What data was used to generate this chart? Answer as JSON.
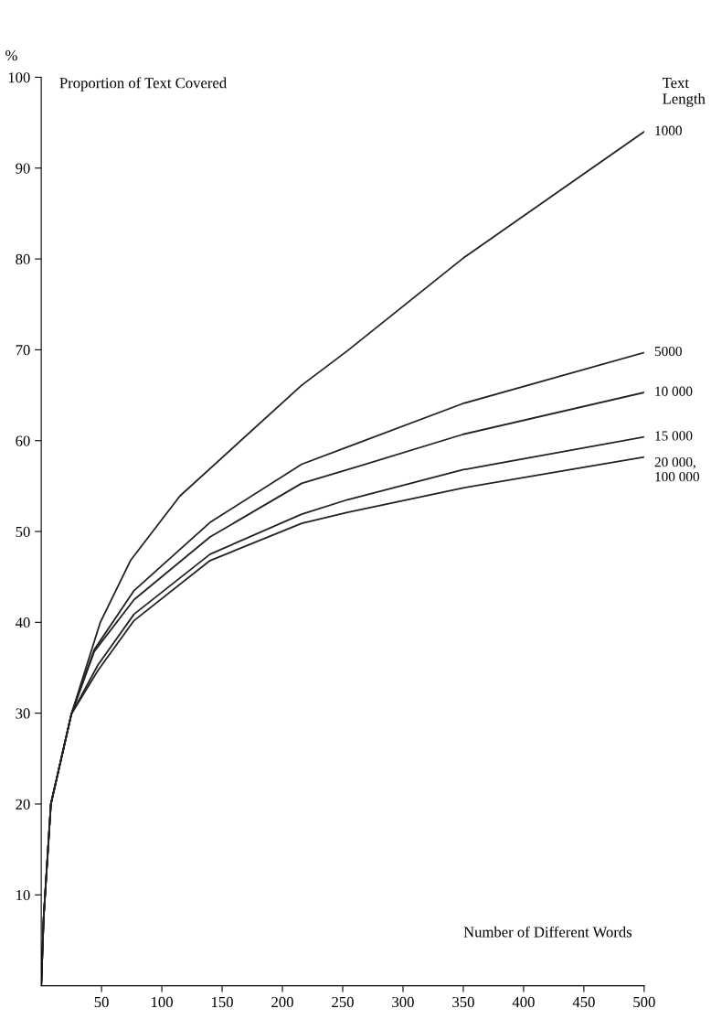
{
  "chart_data": {
    "type": "line",
    "ylabel": "Proportion of Text Covered",
    "xlabel": "Number of Different Words",
    "legend_title": "Text Length",
    "annotations": [
      "%"
    ],
    "xlim": [
      0,
      500
    ],
    "xticks": [
      50,
      100,
      150,
      200,
      250,
      300,
      350,
      400,
      450,
      500
    ],
    "ylim": [
      0,
      100
    ],
    "yticks": [
      10,
      20,
      30,
      40,
      50,
      60,
      70,
      80,
      90,
      100
    ],
    "grid": false,
    "legend": false,
    "marker": "none",
    "line_style": "solid",
    "series": [
      {
        "name": "1000",
        "color": "#222222",
        "x": [
          0,
          2,
          8,
          25,
          49,
          74,
          115,
          216,
          254,
          350,
          500
        ],
        "values": [
          0,
          7.5,
          20,
          29.9,
          40,
          46.8,
          53.9,
          66.1,
          69.9,
          80.1,
          94
        ]
      },
      {
        "name": "5000",
        "color": "#222222",
        "x": [
          0,
          2,
          8,
          25,
          44,
          77,
          140,
          216,
          254,
          350,
          500
        ],
        "values": [
          0,
          7.5,
          20,
          29.9,
          37,
          43.5,
          51,
          57.4,
          59.3,
          64.1,
          69.7
        ]
      },
      {
        "name": "10 000",
        "color": "#222222",
        "x": [
          0,
          2,
          8,
          25,
          44,
          77,
          140,
          216,
          254,
          350,
          500
        ],
        "values": [
          0,
          7.5,
          20,
          29.9,
          36.8,
          42.5,
          49.4,
          55.3,
          56.8,
          60.7,
          65.3
        ]
      },
      {
        "name": "15 000",
        "color": "#222222",
        "x": [
          0,
          2,
          8,
          25,
          47,
          77,
          140,
          216,
          254,
          350,
          500
        ],
        "values": [
          0,
          7.5,
          20,
          29.9,
          35.3,
          40.9,
          47.5,
          51.9,
          53.5,
          56.8,
          60.4
        ]
      },
      {
        "name": "20 000,\n100 000",
        "color": "#222222",
        "x": [
          0,
          2,
          8,
          25,
          47,
          77,
          140,
          216,
          254,
          350,
          500
        ],
        "values": [
          0,
          7.5,
          20,
          29.9,
          34.7,
          40.2,
          46.8,
          50.9,
          52.1,
          54.8,
          58.2
        ]
      }
    ]
  }
}
